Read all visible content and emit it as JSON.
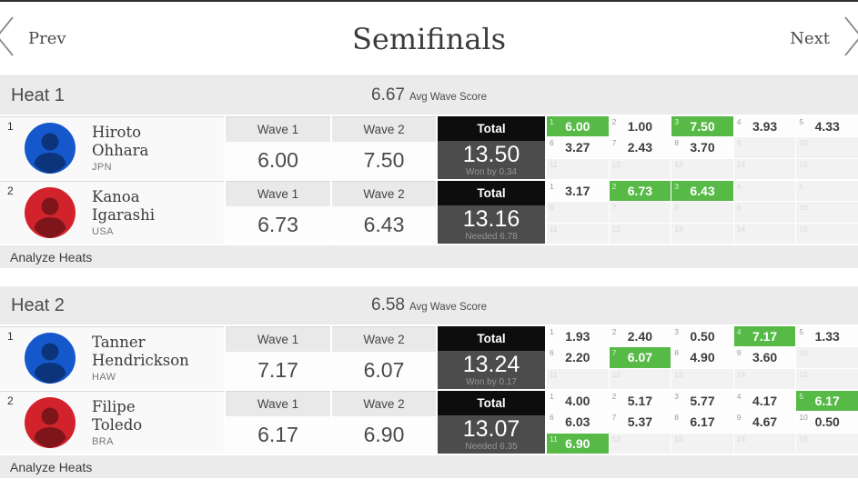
{
  "nav": {
    "prev_label": "Prev",
    "title": "Semifinals",
    "next_label": "Next"
  },
  "labels": {
    "wave1": "Wave 1",
    "wave2": "Wave 2",
    "total": "Total",
    "avg": "Avg Wave Score",
    "analyze": "Analyze Heats"
  },
  "colors": {
    "best_wave_green": "#57ba47",
    "avatar_blue": "#1558cc",
    "avatar_red": "#d2232d",
    "total_header_black": "#0d0d0d",
    "total_body_gray": "#4c4c4c"
  },
  "grid_slots": 15,
  "heats": [
    {
      "name": "Heat 1",
      "avg": "6.67",
      "surfers": [
        {
          "rank": "1",
          "name_line1": "Hiroto",
          "name_line2": "Ohhara",
          "country": "JPN",
          "avatar": "blue",
          "wave1": "6.00",
          "wave2": "7.50",
          "total": "13.50",
          "note": "Won by 0.34",
          "waves": [
            {
              "score": "6.00",
              "best": true
            },
            {
              "score": "1.00",
              "best": false
            },
            {
              "score": "7.50",
              "best": true
            },
            {
              "score": "3.93",
              "best": false
            },
            {
              "score": "4.33",
              "best": false
            },
            {
              "score": "3.27",
              "best": false
            },
            {
              "score": "2.43",
              "best": false
            },
            {
              "score": "3.70",
              "best": false
            }
          ]
        },
        {
          "rank": "2",
          "name_line1": "Kanoa",
          "name_line2": "Igarashi",
          "country": "USA",
          "avatar": "red",
          "wave1": "6.73",
          "wave2": "6.43",
          "total": "13.16",
          "note": "Needed 6.78",
          "waves": [
            {
              "score": "3.17",
              "best": false
            },
            {
              "score": "6.73",
              "best": true
            },
            {
              "score": "6.43",
              "best": true
            }
          ]
        }
      ]
    },
    {
      "name": "Heat 2",
      "avg": "6.58",
      "surfers": [
        {
          "rank": "1",
          "name_line1": "Tanner",
          "name_line2": "Hendrickson",
          "country": "HAW",
          "avatar": "blue",
          "wave1": "7.17",
          "wave2": "6.07",
          "total": "13.24",
          "note": "Won by 0.17",
          "waves": [
            {
              "score": "1.93",
              "best": false
            },
            {
              "score": "2.40",
              "best": false
            },
            {
              "score": "0.50",
              "best": false
            },
            {
              "score": "7.17",
              "best": true
            },
            {
              "score": "1.33",
              "best": false
            },
            {
              "score": "2.20",
              "best": false
            },
            {
              "score": "6.07",
              "best": true
            },
            {
              "score": "4.90",
              "best": false
            },
            {
              "score": "3.60",
              "best": false
            }
          ]
        },
        {
          "rank": "2",
          "name_line1": "Filipe",
          "name_line2": "Toledo",
          "country": "BRA",
          "avatar": "red",
          "wave1": "6.17",
          "wave2": "6.90",
          "total": "13.07",
          "note": "Needed 6.35",
          "waves": [
            {
              "score": "4.00",
              "best": false
            },
            {
              "score": "5.17",
              "best": false
            },
            {
              "score": "5.77",
              "best": false
            },
            {
              "score": "4.17",
              "best": false
            },
            {
              "score": "6.17",
              "best": true
            },
            {
              "score": "6.03",
              "best": false
            },
            {
              "score": "5.37",
              "best": false
            },
            {
              "score": "6.17",
              "best": false
            },
            {
              "score": "4.67",
              "best": false
            },
            {
              "score": "0.50",
              "best": false
            },
            {
              "score": "6.90",
              "best": true
            }
          ]
        }
      ]
    }
  ]
}
